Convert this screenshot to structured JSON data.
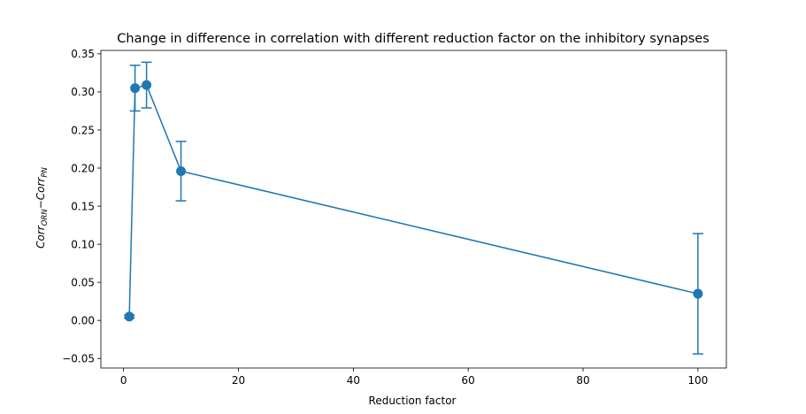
{
  "chart_data": {
    "type": "line",
    "title": "Change in difference in correlation with different reduction factor on the inhibitory synapses",
    "xlabel": "Reduction factor",
    "ylabel": {
      "base1": "Corr",
      "sub1": "ORN",
      "op": "−",
      "base2": "Corr",
      "sub2": "PN"
    },
    "xlim": [
      -3.95,
      104.95
    ],
    "ylim": [
      -0.0625,
      0.3545
    ],
    "xticks": [
      0,
      20,
      40,
      60,
      80,
      100
    ],
    "xtick_labels": [
      "0",
      "20",
      "40",
      "60",
      "80",
      "100"
    ],
    "yticks": [
      -0.05,
      0.0,
      0.05,
      0.1,
      0.15,
      0.2,
      0.25,
      0.3,
      0.35
    ],
    "ytick_labels": [
      "−0.05",
      "0.00",
      "0.05",
      "0.10",
      "0.15",
      "0.20",
      "0.25",
      "0.30",
      "0.35"
    ],
    "grid": false,
    "series": [
      {
        "color": "#1f77b4",
        "x": [
          1,
          2,
          4,
          10,
          100
        ],
        "y": [
          0.005,
          0.305,
          0.309,
          0.196,
          0.035
        ],
        "err": [
          0.002,
          0.03,
          0.03,
          0.039,
          0.079
        ]
      }
    ]
  }
}
